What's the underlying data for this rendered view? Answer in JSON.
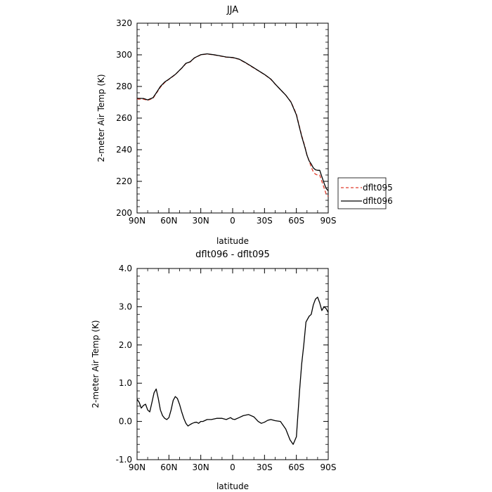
{
  "chart_data": [
    {
      "type": "line",
      "title": "JJA",
      "xlabel": "latitude",
      "ylabel": "2-meter Air Temp (K)",
      "x_axis_direction": "north-to-south",
      "xlim": [
        90,
        -90
      ],
      "x_ticks": [
        90,
        60,
        30,
        0,
        -30,
        -60,
        -90
      ],
      "x_tick_labels": [
        "90N",
        "60N",
        "30N",
        "0",
        "30S",
        "60S",
        "90S"
      ],
      "ylim": [
        200,
        320
      ],
      "y_ticks": [
        200,
        220,
        240,
        260,
        280,
        300,
        320
      ],
      "y_tick_labels": [
        "200",
        "220",
        "240",
        "260",
        "280",
        "300",
        "320"
      ],
      "grid": false,
      "legend": {
        "placement": "outside-right"
      },
      "series": [
        {
          "name": "dflt095",
          "color": "#e03c2c",
          "style": "dashed",
          "x": [
            90,
            84,
            80,
            75,
            72,
            68,
            64,
            60,
            54,
            48,
            44,
            40,
            36,
            30,
            24,
            18,
            12,
            6,
            0,
            -6,
            -12,
            -18,
            -24,
            -30,
            -36,
            -40,
            -45,
            -50,
            -55,
            -60,
            -62,
            -65,
            -68,
            -70,
            -72,
            -74,
            -76,
            -78,
            -80,
            -82,
            -84,
            -86,
            -88,
            -90
          ],
          "y": [
            272,
            272,
            271.2,
            272.5,
            275.5,
            279.5,
            282.5,
            284.5,
            287.5,
            291.5,
            294.5,
            295.5,
            298,
            300,
            300.5,
            300,
            299.3,
            298.5,
            298.2,
            297.2,
            295,
            292.5,
            290,
            287.5,
            284.5,
            281.5,
            278,
            274.5,
            270.2,
            262.5,
            257,
            249,
            242,
            236.5,
            233,
            229,
            226,
            224.5,
            224,
            224,
            220,
            216,
            212,
            210.5
          ]
        },
        {
          "name": "dflt096",
          "color": "#000000",
          "style": "solid",
          "x": [
            90,
            84,
            80,
            75,
            72,
            68,
            64,
            60,
            54,
            48,
            44,
            40,
            36,
            30,
            24,
            18,
            12,
            6,
            0,
            -6,
            -12,
            -18,
            -24,
            -30,
            -36,
            -40,
            -45,
            -50,
            -55,
            -60,
            -62,
            -65,
            -68,
            -70,
            -72,
            -74,
            -76,
            -78,
            -80,
            -82,
            -84,
            -86,
            -88,
            -90
          ],
          "y": [
            272.5,
            272.4,
            271.5,
            272.9,
            275.8,
            280,
            282.8,
            284.6,
            287.6,
            291.6,
            294.6,
            295.6,
            298.1,
            300.1,
            300.6,
            300.1,
            299.4,
            298.6,
            298.3,
            297.3,
            295.1,
            292.6,
            290.1,
            287.6,
            284.6,
            281.6,
            278,
            274.5,
            270,
            262,
            256.5,
            248.5,
            241.5,
            236.5,
            233,
            231,
            228.5,
            227.3,
            227,
            227,
            223,
            219,
            215.5,
            214
          ]
        }
      ]
    },
    {
      "type": "line",
      "title": "dflt096 - dflt095",
      "xlabel": "latitude",
      "ylabel": "2-meter Air Temp (K)",
      "x_axis_direction": "north-to-south",
      "xlim": [
        90,
        -90
      ],
      "x_ticks": [
        90,
        60,
        30,
        0,
        -30,
        -60,
        -90
      ],
      "x_tick_labels": [
        "90N",
        "60N",
        "30N",
        "0",
        "30S",
        "60S",
        "90S"
      ],
      "ylim": [
        -1,
        4
      ],
      "y_ticks": [
        -1,
        0,
        1,
        2,
        3,
        4
      ],
      "y_tick_labels": [
        "-1.0",
        "0.0",
        "1.0",
        "2.0",
        "3.0",
        "4.0"
      ],
      "grid": false,
      "series": [
        {
          "color": "#000000",
          "style": "solid",
          "x": [
            90,
            88,
            86,
            84,
            82,
            80,
            78,
            76,
            74,
            72,
            70,
            68,
            66,
            64,
            62,
            60,
            58,
            56,
            54,
            52,
            50,
            48,
            46,
            44,
            42,
            40,
            38,
            36,
            34,
            32,
            30,
            28,
            24,
            20,
            15,
            10,
            6,
            2,
            0,
            -2,
            -6,
            -10,
            -15,
            -20,
            -24,
            -27,
            -30,
            -33,
            -36,
            -40,
            -45,
            -50,
            -54,
            -57,
            -60,
            -61,
            -63,
            -65,
            -67,
            -69,
            -72,
            -74,
            -76,
            -78,
            -80,
            -82,
            -84,
            -86,
            -88,
            -90
          ],
          "y": [
            0.58,
            0.5,
            0.35,
            0.42,
            0.45,
            0.3,
            0.25,
            0.5,
            0.75,
            0.85,
            0.6,
            0.3,
            0.15,
            0.08,
            0.05,
            0.1,
            0.3,
            0.55,
            0.65,
            0.6,
            0.45,
            0.25,
            0.08,
            -0.05,
            -0.12,
            -0.08,
            -0.05,
            -0.03,
            -0.02,
            -0.05,
            0.0,
            0.0,
            0.05,
            0.05,
            0.08,
            0.08,
            0.05,
            0.1,
            0.06,
            0.05,
            0.1,
            0.15,
            0.18,
            0.12,
            0.0,
            -0.05,
            -0.02,
            0.03,
            0.05,
            0.02,
            0.0,
            -0.2,
            -0.48,
            -0.6,
            -0.4,
            0.0,
            0.8,
            1.5,
            2.0,
            2.6,
            2.75,
            2.8,
            3.05,
            3.2,
            3.25,
            3.1,
            2.9,
            3.0,
            2.95,
            2.85
          ]
        }
      ]
    }
  ],
  "legend_labels": [
    "dflt095",
    "dflt096"
  ]
}
